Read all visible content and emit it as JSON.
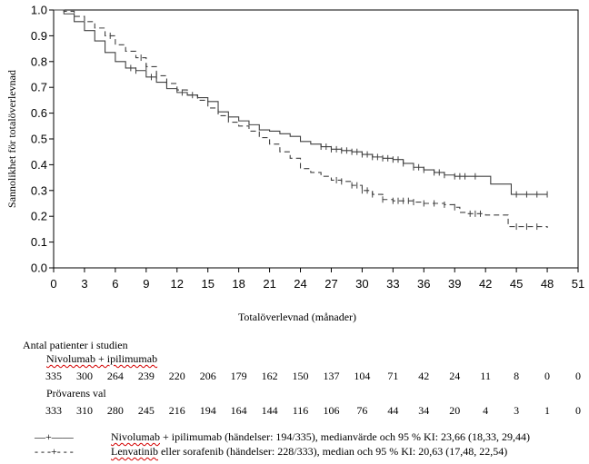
{
  "chart_data": {
    "type": "line",
    "subtype": "kaplan-meier",
    "title": "",
    "xlabel": "Totalöverlevnad (månader)",
    "ylabel": "Sannolikhet för totalöverlevnad",
    "xlim": [
      0,
      51
    ],
    "ylim": [
      0.0,
      1.0
    ],
    "x_ticks": [
      "0",
      "3",
      "6",
      "9",
      "12",
      "15",
      "18",
      "21",
      "24",
      "27",
      "30",
      "33",
      "36",
      "39",
      "42",
      "45",
      "48",
      "51"
    ],
    "y_ticks": [
      "0.0",
      "0.1",
      "0.2",
      "0.3",
      "0.4",
      "0.5",
      "0.6",
      "0.7",
      "0.8",
      "0.9",
      "1.0"
    ],
    "series": [
      {
        "name": "Nivolumab + ipilimumab",
        "style": "solid",
        "points": [
          [
            0,
            1.0
          ],
          [
            1,
            0.985
          ],
          [
            2,
            0.955
          ],
          [
            3,
            0.92
          ],
          [
            4,
            0.88
          ],
          [
            5,
            0.835
          ],
          [
            6,
            0.8
          ],
          [
            7,
            0.775
          ],
          [
            8,
            0.765
          ],
          [
            9,
            0.74
          ],
          [
            10,
            0.72
          ],
          [
            11,
            0.695
          ],
          [
            12,
            0.68
          ],
          [
            13,
            0.67
          ],
          [
            14,
            0.66
          ],
          [
            15,
            0.645
          ],
          [
            16,
            0.605
          ],
          [
            17,
            0.585
          ],
          [
            18,
            0.57
          ],
          [
            19,
            0.555
          ],
          [
            20,
            0.535
          ],
          [
            21,
            0.53
          ],
          [
            22,
            0.52
          ],
          [
            23,
            0.51
          ],
          [
            24,
            0.49
          ],
          [
            25,
            0.48
          ],
          [
            26,
            0.47
          ],
          [
            27,
            0.46
          ],
          [
            28,
            0.455
          ],
          [
            29,
            0.45
          ],
          [
            30,
            0.44
          ],
          [
            31,
            0.43
          ],
          [
            32,
            0.425
          ],
          [
            33,
            0.42
          ],
          [
            34,
            0.405
          ],
          [
            35,
            0.39
          ],
          [
            36,
            0.38
          ],
          [
            37,
            0.37
          ],
          [
            38,
            0.36
          ],
          [
            39,
            0.355
          ],
          [
            42,
            0.355
          ],
          [
            42.5,
            0.325
          ],
          [
            44,
            0.325
          ],
          [
            44.5,
            0.285
          ],
          [
            48,
            0.285
          ]
        ],
        "censor_x": [
          7.5,
          8,
          9.5,
          12.5,
          13.5,
          26,
          26.5,
          27,
          27.5,
          28,
          28.5,
          29,
          29.5,
          30,
          30.5,
          31,
          31.5,
          32,
          32.5,
          33,
          33.5,
          34,
          35,
          35.5,
          36,
          37,
          37.5,
          38,
          39,
          39.5,
          40,
          41,
          45,
          46,
          47,
          48
        ]
      },
      {
        "name": "Lenvatinib eller sorafenib",
        "style": "dashed",
        "points": [
          [
            0,
            1.0
          ],
          [
            1,
            0.995
          ],
          [
            2,
            0.975
          ],
          [
            3,
            0.955
          ],
          [
            4,
            0.93
          ],
          [
            5,
            0.9
          ],
          [
            6,
            0.865
          ],
          [
            7,
            0.84
          ],
          [
            8,
            0.815
          ],
          [
            9,
            0.78
          ],
          [
            10,
            0.745
          ],
          [
            11,
            0.715
          ],
          [
            12,
            0.69
          ],
          [
            13,
            0.67
          ],
          [
            14,
            0.65
          ],
          [
            15,
            0.62
          ],
          [
            16,
            0.59
          ],
          [
            17,
            0.565
          ],
          [
            18,
            0.55
          ],
          [
            19,
            0.53
          ],
          [
            20,
            0.505
          ],
          [
            21,
            0.48
          ],
          [
            22,
            0.45
          ],
          [
            23,
            0.425
          ],
          [
            24,
            0.385
          ],
          [
            25,
            0.37
          ],
          [
            26,
            0.355
          ],
          [
            27,
            0.34
          ],
          [
            28,
            0.335
          ],
          [
            29,
            0.32
          ],
          [
            30,
            0.3
          ],
          [
            31,
            0.285
          ],
          [
            32,
            0.265
          ],
          [
            33,
            0.26
          ],
          [
            35,
            0.255
          ],
          [
            36,
            0.25
          ],
          [
            38,
            0.245
          ],
          [
            39,
            0.235
          ],
          [
            39.5,
            0.215
          ],
          [
            40,
            0.21
          ],
          [
            42,
            0.205
          ],
          [
            44,
            0.205
          ],
          [
            44.2,
            0.16
          ],
          [
            48,
            0.155
          ]
        ],
        "censor_x": [
          5.5,
          8.5,
          9,
          10,
          11,
          27.5,
          28,
          29,
          29.5,
          30,
          30.5,
          31,
          32,
          33,
          33.5,
          34,
          34.5,
          35,
          36,
          37,
          38,
          39,
          40.5,
          41,
          41.5,
          45,
          46,
          47
        ]
      }
    ],
    "risk_table": {
      "title": "Antal patienter i studien",
      "groups": [
        {
          "name": "Nivolumab + ipilimumab",
          "counts": [
            "335",
            "300",
            "264",
            "239",
            "220",
            "206",
            "179",
            "162",
            "150",
            "137",
            "104",
            "71",
            "42",
            "24",
            "11",
            "8",
            "0",
            "0"
          ]
        },
        {
          "name": "Prövarens val",
          "counts": [
            "333",
            "310",
            "280",
            "245",
            "216",
            "194",
            "164",
            "144",
            "116",
            "106",
            "76",
            "44",
            "34",
            "20",
            "4",
            "3",
            "1",
            "0"
          ]
        }
      ]
    },
    "legend": [
      {
        "symbol": "—+——",
        "prefix": "Nivolumab",
        "rest": " + ipilimumab (händelser: 194/335), medianvärde och 95 % KI: 23,66 (18,33, 29,44)"
      },
      {
        "symbol": "- - -+- - -",
        "prefix": "Lenvatinib",
        "rest": " eller sorafenib (händelser: 228/333), median och 95 % KI: 20,63 (17,48, 22,54)"
      }
    ],
    "colors": {
      "line": "#404040",
      "axis": "#000000",
      "squiggle": "#d40000"
    }
  }
}
